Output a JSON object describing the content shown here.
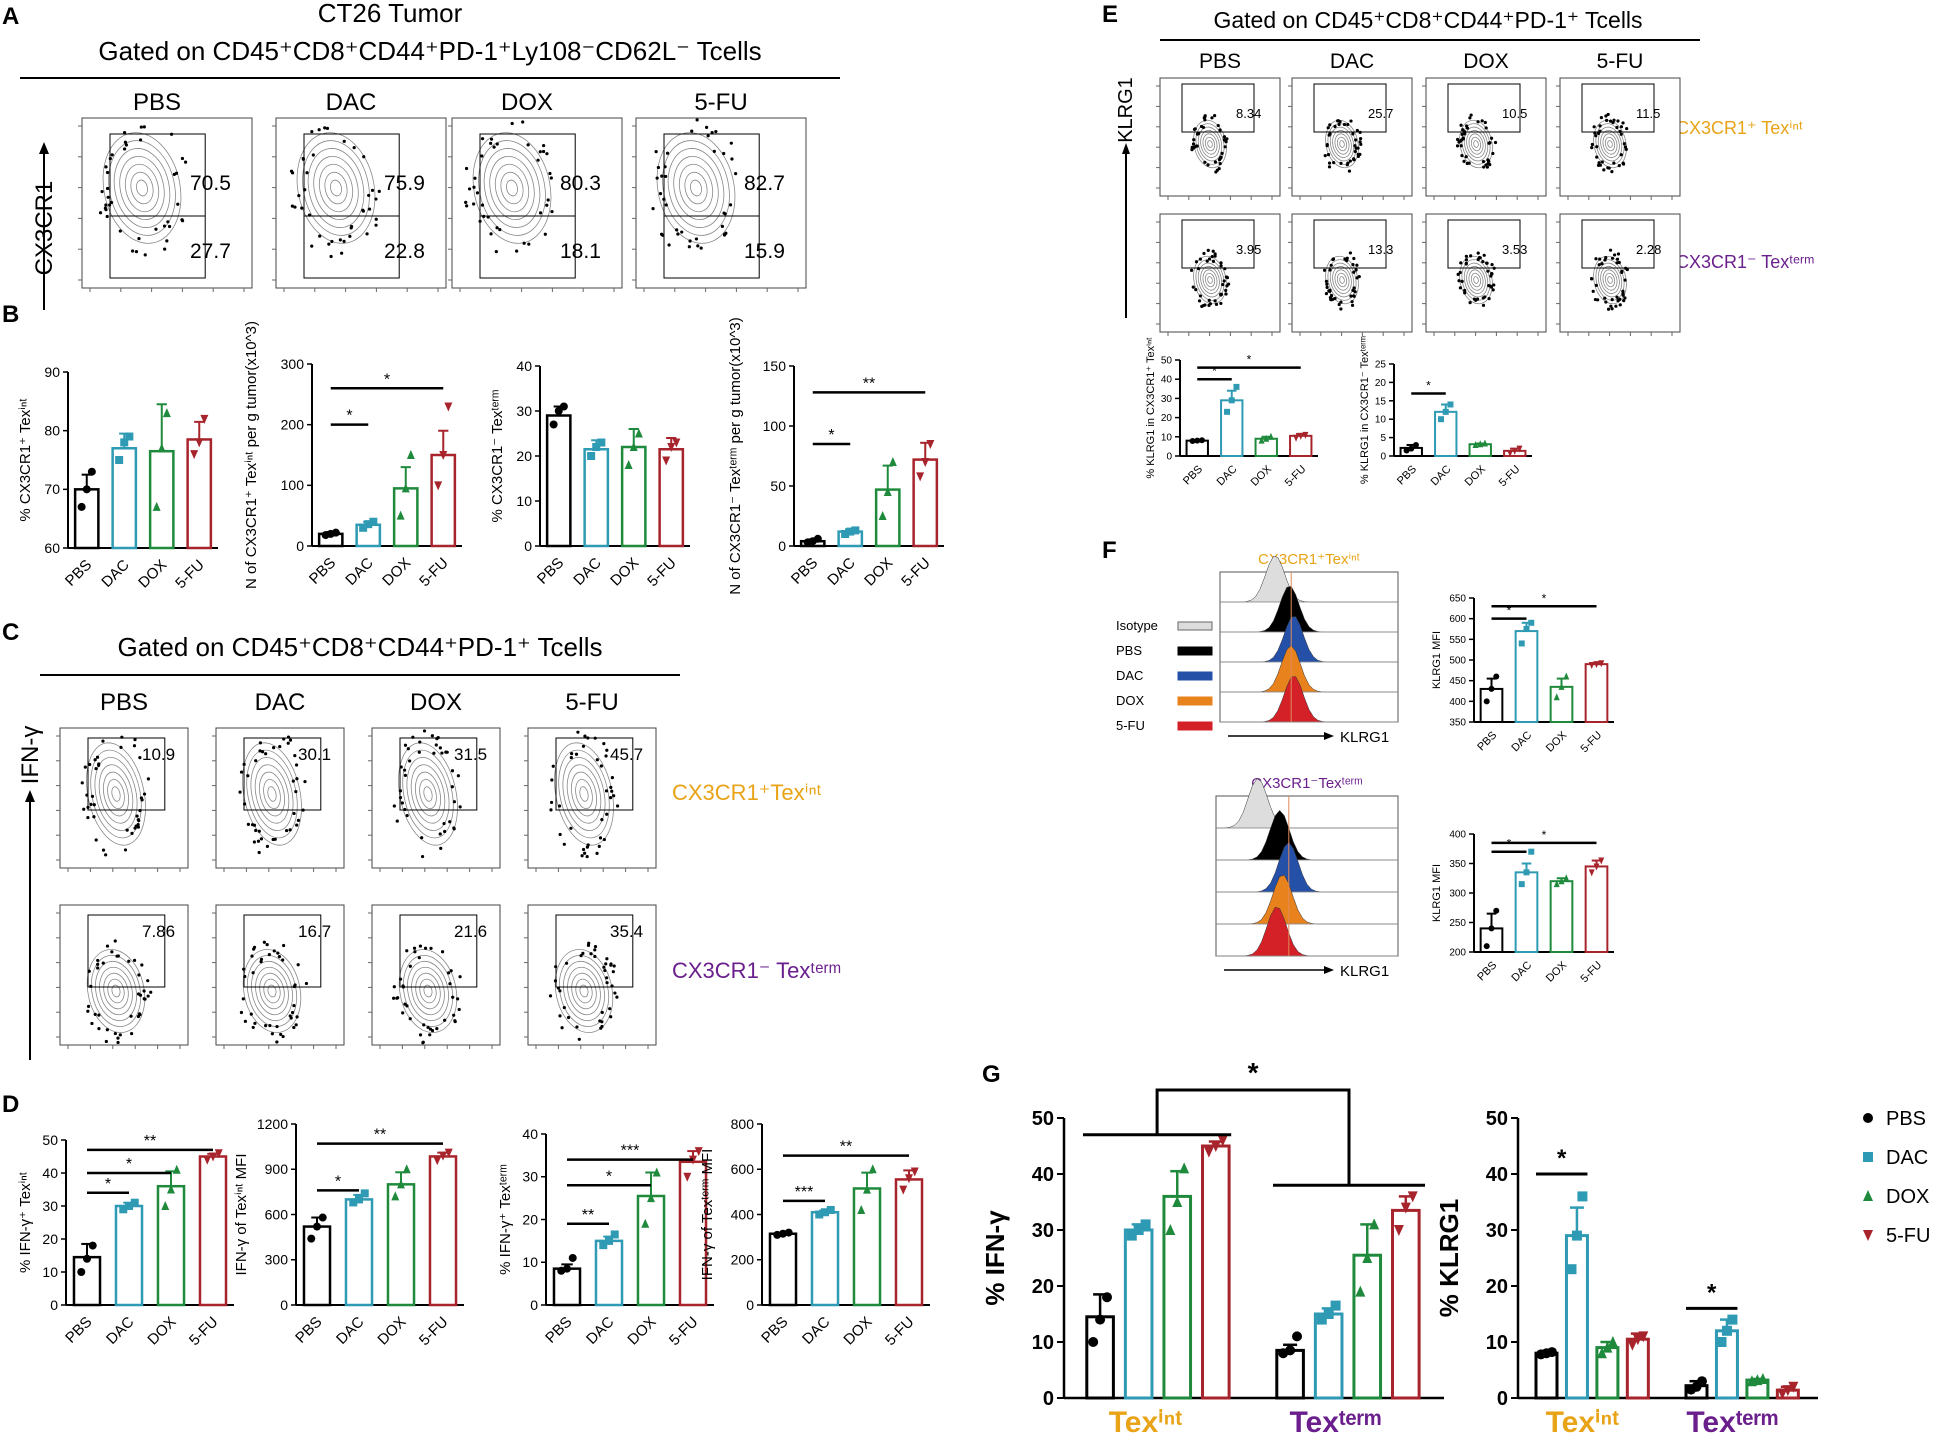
{
  "colors": {
    "PBS": "#000000",
    "DAC": "#2e9ab3",
    "DOX": "#1f8a3c",
    "5-FU": "#a8242c",
    "int": "#e8a317",
    "term": "#6a1f8c"
  },
  "groups": [
    "PBS",
    "DAC",
    "DOX",
    "5-FU"
  ],
  "panelA": {
    "letter": "A",
    "title1": "CT26 Tumor",
    "title2": "Gated on CD45⁺CD8⁺CD44⁺PD-1⁺Ly108⁻CD62L⁻ Tcells",
    "yaxis": "CX3CR1",
    "plots": [
      {
        "label": "PBS",
        "top": "70.5",
        "bottom": "27.7"
      },
      {
        "label": "DAC",
        "top": "75.9",
        "bottom": "22.8"
      },
      {
        "label": "DOX",
        "top": "80.3",
        "bottom": "18.1"
      },
      {
        "label": "5-FU",
        "top": "82.7",
        "bottom": "15.9"
      }
    ]
  },
  "panelB": {
    "letter": "B"
  },
  "panelC": {
    "letter": "C",
    "title": "Gated on CD45⁺CD8⁺CD44⁺PD-1⁺ Tcells",
    "yaxis": "IFN-γ",
    "row1_label": "CX3CR1⁺Texⁱⁿᵗ",
    "row2_label": "CX3CR1⁻ Texᵗᵉʳᵐ",
    "plots": [
      {
        "label": "PBS",
        "top": "10.9",
        "bottom": "7.86"
      },
      {
        "label": "DAC",
        "top": "30.1",
        "bottom": "16.7"
      },
      {
        "label": "DOX",
        "top": "31.5",
        "bottom": "21.6"
      },
      {
        "label": "5-FU",
        "top": "45.7",
        "bottom": "35.4"
      }
    ]
  },
  "panelD": {
    "letter": "D"
  },
  "panelE": {
    "letter": "E",
    "title": "Gated on CD45⁺CD8⁺CD44⁺PD-1⁺ Tcells",
    "yaxis": "KLRG1",
    "row1_label": "CX3CR1⁺ Texⁱⁿᵗ",
    "row2_label": "CX3CR1⁻ Texᵗᵉʳᵐ",
    "plots": [
      {
        "label": "PBS",
        "top": "8.34",
        "bottom": "3.95"
      },
      {
        "label": "DAC",
        "top": "25.7",
        "bottom": "13.3"
      },
      {
        "label": "DOX",
        "top": "10.5",
        "bottom": "3.53"
      },
      {
        "label": "5-FU",
        "top": "11.5",
        "bottom": "2.28"
      }
    ]
  },
  "panelF": {
    "letter": "F",
    "hist1_title": "CX3CR1⁺Texⁱⁿᵗ",
    "hist2_title": "CX3CR1⁻Texᵗᵉʳᵐ",
    "xaxis": "KLRG1",
    "legend": [
      "Isotype",
      "PBS",
      "DAC",
      "DOX",
      "5-FU"
    ]
  },
  "panelG": {
    "letter": "G"
  },
  "chart_data": [
    {
      "id": "B1",
      "type": "bar",
      "categories": [
        "PBS",
        "DAC",
        "DOX",
        "5-FU"
      ],
      "values": [
        70,
        77,
        76.5,
        78.5
      ],
      "errors": [
        2.5,
        2.5,
        8,
        3
      ],
      "points": [
        [
          67,
          70,
          73
        ],
        [
          75,
          78,
          79
        ],
        [
          67,
          77,
          83
        ],
        [
          76,
          78,
          82
        ]
      ],
      "ylim": [
        60,
        90
      ],
      "ticks": [
        60,
        70,
        80,
        90
      ],
      "ylabel": "% CX3CR1⁺ Texⁱⁿᵗ",
      "sig": []
    },
    {
      "id": "B2",
      "type": "bar",
      "categories": [
        "PBS",
        "DAC",
        "DOX",
        "5-FU"
      ],
      "values": [
        20,
        35,
        95,
        150
      ],
      "errors": [
        3,
        5,
        35,
        40
      ],
      "points": [
        [
          18,
          20,
          22
        ],
        [
          30,
          36,
          40
        ],
        [
          50,
          95,
          150
        ],
        [
          100,
          150,
          230
        ]
      ],
      "ylim": [
        0,
        300
      ],
      "ticks": [
        0,
        100,
        200,
        300
      ],
      "ylabel": "N of CX3CR1⁺ Texⁱⁿᵗ per g tumor(x10^3)",
      "sig": [
        {
          "from": 0,
          "to": 1,
          "label": "*",
          "level": 200
        },
        {
          "from": 0,
          "to": 3,
          "label": "*",
          "level": 260
        }
      ]
    },
    {
      "id": "B3",
      "type": "bar",
      "categories": [
        "PBS",
        "DAC",
        "DOX",
        "5-FU"
      ],
      "values": [
        29,
        21.5,
        22,
        21.5
      ],
      "errors": [
        2,
        2,
        4,
        2.5
      ],
      "points": [
        [
          27,
          30,
          31
        ],
        [
          20,
          22,
          23
        ],
        [
          18,
          22,
          25
        ],
        [
          19,
          22,
          23
        ]
      ],
      "ylim": [
        0,
        40
      ],
      "ticks": [
        0,
        10,
        20,
        30,
        40
      ],
      "ylabel": "% CX3CR1⁻ Texᵗᵉʳᵐ",
      "sig": []
    },
    {
      "id": "B4",
      "type": "bar",
      "categories": [
        "PBS",
        "DAC",
        "DOX",
        "5-FU"
      ],
      "values": [
        4,
        12,
        47,
        72
      ],
      "errors": [
        1.5,
        2,
        20,
        14
      ],
      "points": [
        [
          3,
          4,
          6
        ],
        [
          10,
          12,
          13
        ],
        [
          25,
          45,
          70
        ],
        [
          58,
          70,
          85
        ]
      ],
      "ylim": [
        0,
        150
      ],
      "ticks": [
        0,
        50,
        100,
        150
      ],
      "ylabel": "N of CX3CR1⁻ Texᵗᵉʳᵐ per g tumor(x10^3)",
      "sig": [
        {
          "from": 0,
          "to": 1,
          "label": "*",
          "level": 85
        },
        {
          "from": 0,
          "to": 3,
          "label": "**",
          "level": 128
        }
      ]
    },
    {
      "id": "D1",
      "type": "bar",
      "categories": [
        "PBS",
        "DAC",
        "DOX",
        "5-FU"
      ],
      "values": [
        14.5,
        30,
        36,
        45
      ],
      "errors": [
        4,
        1,
        4.5,
        0.8
      ],
      "points": [
        [
          10,
          14,
          18
        ],
        [
          29,
          30,
          31
        ],
        [
          30,
          35,
          41
        ],
        [
          44,
          45,
          46
        ]
      ],
      "ylim": [
        0,
        50
      ],
      "ticks": [
        0,
        10,
        20,
        30,
        40,
        50
      ],
      "ylabel": "% IFN-γ⁺ Texⁱⁿᵗ",
      "sig": [
        {
          "from": 0,
          "to": 1,
          "label": "*",
          "level": 34
        },
        {
          "from": 0,
          "to": 2,
          "label": "*",
          "level": 40
        },
        {
          "from": 0,
          "to": 3,
          "label": "**",
          "level": 47
        }
      ]
    },
    {
      "id": "D2",
      "type": "bar",
      "categories": [
        "PBS",
        "DAC",
        "DOX",
        "5-FU"
      ],
      "values": [
        520,
        700,
        800,
        985
      ],
      "errors": [
        60,
        30,
        80,
        25
      ],
      "points": [
        [
          440,
          520,
          580
        ],
        [
          680,
          700,
          740
        ],
        [
          720,
          800,
          900
        ],
        [
          960,
          990,
          1010
        ]
      ],
      "ylim": [
        0,
        1200
      ],
      "ticks": [
        0,
        300,
        600,
        900,
        1200
      ],
      "ylabel": "IFN-γ of Texⁱⁿᵗ MFI",
      "sig": [
        {
          "from": 0,
          "to": 1,
          "label": "*",
          "level": 760
        },
        {
          "from": 0,
          "to": 3,
          "label": "**",
          "level": 1070
        }
      ]
    },
    {
      "id": "D3",
      "type": "bar",
      "categories": [
        "PBS",
        "DAC",
        "DOX",
        "5-FU"
      ],
      "values": [
        8.5,
        15,
        25.5,
        33.5
      ],
      "errors": [
        1,
        1,
        5.5,
        2.5
      ],
      "points": [
        [
          8,
          8.5,
          11
        ],
        [
          14,
          15,
          16.5
        ],
        [
          19,
          25,
          31
        ],
        [
          30,
          34,
          36
        ]
      ],
      "ylim": [
        0,
        40
      ],
      "ticks": [
        0,
        10,
        20,
        30,
        40
      ],
      "ylabel": "% IFN-γ⁺ Texᵗᵉʳᵐ",
      "sig": [
        {
          "from": 0,
          "to": 1,
          "label": "**",
          "level": 19
        },
        {
          "from": 0,
          "to": 2,
          "label": "*",
          "level": 28
        },
        {
          "from": 0,
          "to": 3,
          "label": "***",
          "level": 34
        }
      ]
    },
    {
      "id": "D4",
      "type": "bar",
      "categories": [
        "PBS",
        "DAC",
        "DOX",
        "5-FU"
      ],
      "values": [
        315,
        410,
        515,
        555
      ],
      "errors": [
        5,
        8,
        70,
        40
      ],
      "points": [
        [
          310,
          315,
          320
        ],
        [
          400,
          410,
          420
        ],
        [
          420,
          510,
          600
        ],
        [
          510,
          560,
          590
        ]
      ],
      "ylim": [
        0,
        800
      ],
      "ticks": [
        0,
        200,
        400,
        600,
        800
      ],
      "ylabel": "IFN-γ of Texᵗᵉʳᵐ MFI",
      "sig": [
        {
          "from": 0,
          "to": 1,
          "label": "***",
          "level": 460
        },
        {
          "from": 0,
          "to": 3,
          "label": "**",
          "level": 660
        }
      ]
    },
    {
      "id": "E1",
      "type": "bar",
      "categories": [
        "PBS",
        "DAC",
        "DOX",
        "5-FU"
      ],
      "values": [
        8,
        29,
        9,
        10.5
      ],
      "errors": [
        0.3,
        5,
        1,
        1
      ],
      "points": [
        [
          7.8,
          8,
          8.2
        ],
        [
          23,
          29,
          36
        ],
        [
          8,
          9,
          10
        ],
        [
          9.5,
          10.5,
          11
        ]
      ],
      "ylim": [
        0,
        50
      ],
      "ticks": [
        0,
        10,
        20,
        30,
        40,
        50
      ],
      "ylabel": "% KLRG1 in CX3CR1⁺ Texⁱⁿᵗ",
      "sig": [
        {
          "from": 0,
          "to": 1,
          "label": "*",
          "level": 40
        },
        {
          "from": 0,
          "to": 3,
          "label": "*",
          "level": 46
        }
      ]
    },
    {
      "id": "E2",
      "type": "bar",
      "categories": [
        "PBS",
        "DAC",
        "DOX",
        "5-FU"
      ],
      "values": [
        2.2,
        12,
        3.2,
        1.4
      ],
      "errors": [
        0.8,
        2,
        0.2,
        0.6
      ],
      "points": [
        [
          1.5,
          2,
          3
        ],
        [
          10,
          12,
          14
        ],
        [
          3,
          3.2,
          3.4
        ],
        [
          0.8,
          1.4,
          2
        ]
      ],
      "ylim": [
        0,
        25
      ],
      "ticks": [
        0,
        5,
        10,
        15,
        20,
        25
      ],
      "ylabel": "% KLRG1 in CX3CR1⁻ Texᵗᵉʳᵐ",
      "sig": [
        {
          "from": 0,
          "to": 1,
          "label": "*",
          "level": 17
        }
      ]
    },
    {
      "id": "F1",
      "type": "bar",
      "categories": [
        "PBS",
        "DAC",
        "DOX",
        "5-FU"
      ],
      "values": [
        430,
        570,
        435,
        490
      ],
      "errors": [
        25,
        20,
        20,
        3
      ],
      "points": [
        [
          400,
          430,
          460
        ],
        [
          540,
          575,
          590
        ],
        [
          410,
          435,
          460
        ],
        [
          488,
          490,
          492
        ]
      ],
      "ylim": [
        350,
        650
      ],
      "ticks": [
        350,
        400,
        450,
        500,
        550,
        600,
        650
      ],
      "ylabel": "KLRG1 MFI",
      "sig": [
        {
          "from": 0,
          "to": 1,
          "label": "*",
          "level": 600
        },
        {
          "from": 0,
          "to": 3,
          "label": "*",
          "level": 630
        }
      ]
    },
    {
      "id": "F2",
      "type": "bar",
      "categories": [
        "PBS",
        "DAC",
        "DOX",
        "5-FU"
      ],
      "values": [
        240,
        335,
        320,
        345
      ],
      "errors": [
        25,
        15,
        5,
        10
      ],
      "points": [
        [
          210,
          240,
          270
        ],
        [
          315,
          335,
          370
        ],
        [
          315,
          320,
          325
        ],
        [
          335,
          345,
          355
        ]
      ],
      "ylim": [
        200,
        400
      ],
      "ticks": [
        200,
        250,
        300,
        350,
        400
      ],
      "ylabel": "KLRG1 MFI",
      "sig": [
        {
          "from": 0,
          "to": 1,
          "label": "*",
          "level": 370
        },
        {
          "from": 0,
          "to": 3,
          "label": "*",
          "level": 385
        }
      ]
    },
    {
      "id": "G1",
      "type": "grouped_bar",
      "groups": [
        "Texⁱⁿᵗ",
        "Texᵗᵉʳᵐ"
      ],
      "series": [
        {
          "name": "PBS",
          "values": [
            14.5,
            8.5
          ],
          "errors": [
            4,
            1
          ],
          "points": [
            [
              10,
              14,
              18
            ],
            [
              8,
              8.5,
              11
            ]
          ]
        },
        {
          "name": "DAC",
          "values": [
            30,
            15
          ],
          "errors": [
            1,
            1
          ],
          "points": [
            [
              29,
              30,
              31
            ],
            [
              14,
              15,
              16.5
            ]
          ]
        },
        {
          "name": "DOX",
          "values": [
            36,
            25.5
          ],
          "errors": [
            4.5,
            5.5
          ],
          "points": [
            [
              30,
              35,
              41
            ],
            [
              19,
              25,
              31
            ]
          ]
        },
        {
          "name": "5-FU",
          "values": [
            45,
            33.5
          ],
          "errors": [
            0.8,
            2.5
          ],
          "points": [
            [
              44,
              45,
              46
            ],
            [
              30,
              34,
              36
            ]
          ]
        }
      ],
      "ylim": [
        0,
        50
      ],
      "ticks": [
        0,
        10,
        20,
        30,
        40,
        50
      ],
      "ylabel": "% IFN-γ",
      "sig_label": "*"
    },
    {
      "id": "G2",
      "type": "grouped_bar",
      "groups": [
        "Texⁱⁿᵗ",
        "Texᵗᵉʳᵐ"
      ],
      "series": [
        {
          "name": "PBS",
          "values": [
            8,
            2.2
          ],
          "errors": [
            0.3,
            0.8
          ],
          "points": [
            [
              7.8,
              8,
              8.2
            ],
            [
              1.5,
              2,
              3
            ]
          ]
        },
        {
          "name": "DAC",
          "values": [
            29,
            12
          ],
          "errors": [
            5,
            2
          ],
          "points": [
            [
              23,
              29,
              36
            ],
            [
              10,
              12,
              14
            ]
          ]
        },
        {
          "name": "DOX",
          "values": [
            9,
            3.2
          ],
          "errors": [
            1,
            0.2
          ],
          "points": [
            [
              8,
              9,
              10
            ],
            [
              3,
              3.2,
              3.4
            ]
          ]
        },
        {
          "name": "5-FU",
          "values": [
            10.5,
            1.4
          ],
          "errors": [
            1,
            0.6
          ],
          "points": [
            [
              9.5,
              10.5,
              11
            ],
            [
              0.8,
              1.4,
              2
            ]
          ]
        }
      ],
      "ylim": [
        0,
        50
      ],
      "ticks": [
        0,
        10,
        20,
        30,
        40,
        50
      ],
      "ylabel": "% KLRG1",
      "legend": [
        "PBS",
        "DAC",
        "DOX",
        "5-FU"
      ],
      "sig_label": "*"
    }
  ]
}
